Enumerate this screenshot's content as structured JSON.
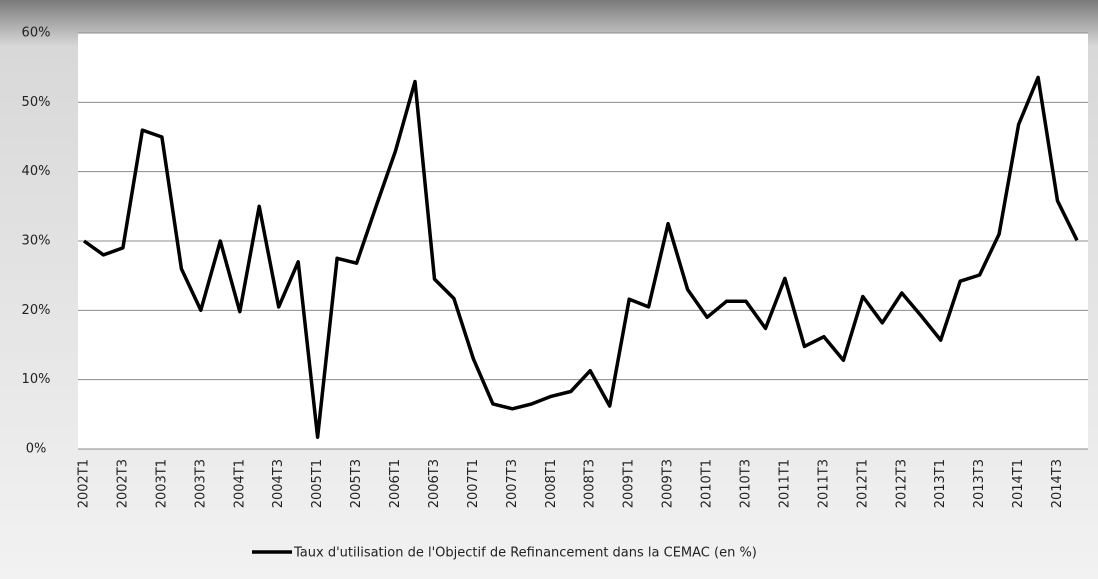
{
  "chart_data": {
    "type": "line",
    "categories": [
      "2002T1",
      null,
      "2002T3",
      null,
      "2003T1",
      null,
      "2003T3",
      null,
      "2004T1",
      null,
      "2004T3",
      null,
      "2005T1",
      null,
      "2005T3",
      null,
      "2006T1",
      null,
      "2006T3",
      null,
      "2007T1",
      null,
      "2007T3",
      null,
      "2008T1",
      null,
      "2008T3",
      null,
      "2009T1",
      null,
      "2009T3",
      null,
      "2010T1",
      null,
      "2010T3",
      null,
      "2011T1",
      null,
      "2011T3",
      null,
      "2012T1",
      null,
      "2012T3",
      null,
      "2013T1",
      null,
      "2013T3",
      null,
      "2014T1",
      null,
      "2014T3",
      null
    ],
    "series": [
      {
        "name": "Taux d'utilisation de l'Objectif de Refinancement dans la CEMAC (en %)",
        "color": "#000000",
        "values": [
          30,
          28,
          29,
          46,
          45,
          26,
          20,
          30,
          19.8,
          35,
          20.5,
          27,
          1.7,
          27.5,
          26.8,
          35,
          43,
          53,
          24.5,
          21.7,
          13,
          6.5,
          5.8,
          6.5,
          7.6,
          8.3,
          11.3,
          6.2,
          21.6,
          20.5,
          32.5,
          23,
          19,
          21.3,
          21.3,
          17.4,
          24.6,
          14.8,
          16.2,
          12.8,
          22,
          18.2,
          22.5,
          19.2,
          15.7,
          24.2,
          25.1,
          31,
          46.8,
          53.6,
          35.8,
          30.1
        ]
      }
    ],
    "ylim": [
      0,
      60
    ],
    "yticks": [
      {
        "value": 0,
        "label": "0%"
      },
      {
        "value": 10,
        "label": "10%"
      },
      {
        "value": 20,
        "label": "20%"
      },
      {
        "value": 30,
        "label": "30%"
      },
      {
        "value": 40,
        "label": "40%"
      },
      {
        "value": 50,
        "label": "50%"
      },
      {
        "value": 60,
        "label": "60%"
      }
    ],
    "grid": true,
    "legend": "bottom"
  }
}
